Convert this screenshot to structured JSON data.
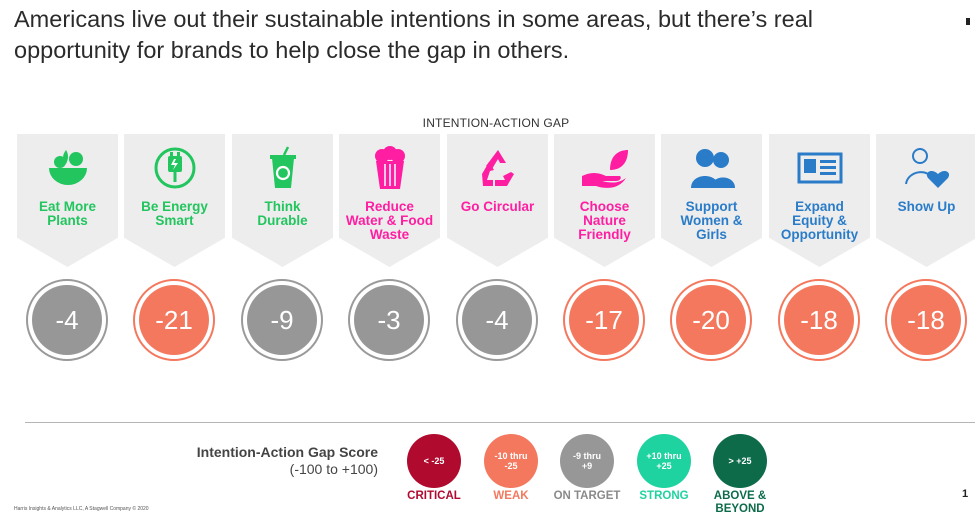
{
  "headline": "Americans live out their sustainable intentions in some areas, but there’s real opportunity for brands to help close the gap in others.",
  "section_title": "INTENTION-ACTION GAP",
  "colors": {
    "green": "#22c55e",
    "pink": "#ff1ea1",
    "blue": "#2a7cc8",
    "critical": "#b00b2e",
    "weak": "#f4785e",
    "on_target": "#979797",
    "strong": "#1fd3a0",
    "above": "#0d6b4a"
  },
  "categories": [
    {
      "icon": "plate-of-vegetables-icon",
      "label_lines": [
        "Eat More",
        "Plants"
      ],
      "score": "-4",
      "rating": "on_target"
    },
    {
      "icon": "energy-plug-icon",
      "label_lines": [
        "Be Energy",
        "Smart"
      ],
      "score": "-21",
      "rating": "weak"
    },
    {
      "icon": "reusable-cup-icon",
      "label_lines": [
        "Think",
        "Durable"
      ],
      "score": "-9",
      "rating": "on_target"
    },
    {
      "icon": "food-container-icon",
      "label_lines": [
        "Reduce",
        "Water & Food",
        "Waste"
      ],
      "score": "-3",
      "rating": "on_target"
    },
    {
      "icon": "recycle-icon",
      "label_lines": [
        "Go Circular"
      ],
      "score": "-4",
      "rating": "on_target"
    },
    {
      "icon": "hand-leaf-icon",
      "label_lines": [
        "Choose",
        "Nature",
        "Friendly"
      ],
      "score": "-17",
      "rating": "weak"
    },
    {
      "icon": "people-icon",
      "label_lines": [
        "Support",
        "Women &",
        "Girls"
      ],
      "score": "-20",
      "rating": "weak"
    },
    {
      "icon": "id-card-icon",
      "label_lines": [
        "Expand",
        "Equity &",
        "Opportunity"
      ],
      "score": "-18",
      "rating": "weak"
    },
    {
      "icon": "person-heart-icon",
      "label_lines": [
        "Show Up"
      ],
      "score": "-18",
      "rating": "weak"
    }
  ],
  "legend": {
    "title": "Intention-Action Gap Score",
    "range": "(-100 to +100)",
    "items": [
      {
        "lines": [
          "< -25"
        ],
        "label_lines": [
          "CRITICAL"
        ],
        "key": "critical"
      },
      {
        "lines": [
          "-10 thru",
          "-25"
        ],
        "label_lines": [
          "WEAK"
        ],
        "key": "weak"
      },
      {
        "lines": [
          "-9 thru",
          "+9"
        ],
        "label_lines": [
          "ON TARGET"
        ],
        "key": "on_target"
      },
      {
        "lines": [
          "+10 thru",
          "+25"
        ],
        "label_lines": [
          "STRONG"
        ],
        "key": "strong"
      },
      {
        "lines": [
          "> +25"
        ],
        "label_lines": [
          "ABOVE &",
          "BEYOND"
        ],
        "key": "above"
      }
    ]
  },
  "footer": "Harris Insights & Analytics LLC, A Stagwell Company © 2020",
  "page_number": "1"
}
